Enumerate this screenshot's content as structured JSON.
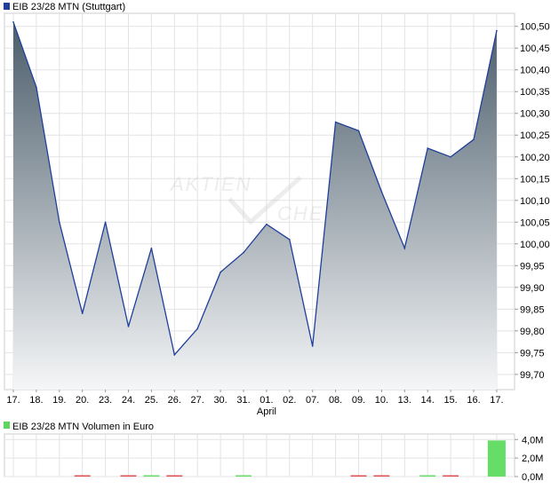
{
  "chart_data": [
    {
      "type": "area",
      "legend": "EIB 23/28 MTN (Stuttgart)",
      "series_color": "#1f3f9a",
      "fill_top": "#4b5d6b",
      "fill_bottom": "#f5f6f7",
      "watermark": [
        "AKTIEN",
        "CHECK"
      ],
      "categories": [
        "17.",
        "18.",
        "19.",
        "20.",
        "23.",
        "24.",
        "25.",
        "26.",
        "27.",
        "30.",
        "31.",
        "01.",
        "02.",
        "07.",
        "08.",
        "09.",
        "10.",
        "13.",
        "14.",
        "15.",
        "16.",
        "17."
      ],
      "month_label": "April",
      "month_label_index": 11,
      "values": [
        100.51,
        100.36,
        100.05,
        99.84,
        100.05,
        99.81,
        99.99,
        99.745,
        99.805,
        99.935,
        99.98,
        100.045,
        100.01,
        99.765,
        100.28,
        100.26,
        100.12,
        99.99,
        100.22,
        100.2,
        100.24,
        100.49
      ],
      "y_ticks": [
        "100,50",
        "100,45",
        "100,40",
        "100,35",
        "100,30",
        "100,25",
        "100,20",
        "100,15",
        "100,10",
        "100,05",
        "100,00",
        "99,95",
        "99,90",
        "99,85",
        "99,80",
        "99,75",
        "99,70"
      ],
      "ylim": [
        99.665,
        100.53
      ],
      "grid": true
    },
    {
      "type": "bar",
      "legend": "EIB 23/28 MTN Volumen in Euro",
      "legend_color": "#5cd65c",
      "up_color": "#66dd66",
      "down_color": "#e05050",
      "y_ticks": [
        "4,0M",
        "2,0M",
        "0,0M"
      ],
      "ylim": [
        0,
        4.6
      ],
      "values": [
        0,
        0,
        0,
        0.05,
        0,
        0.05,
        0.05,
        0.08,
        0,
        0,
        0.05,
        0,
        0,
        0,
        0,
        0.05,
        0.05,
        0,
        0.05,
        0.05,
        0,
        3.9
      ],
      "direction": [
        "",
        "",
        "",
        "down",
        "",
        "down",
        "up",
        "down",
        "",
        "",
        "up",
        "",
        "",
        "",
        "",
        "down",
        "down",
        "",
        "up",
        "down",
        "",
        "up"
      ]
    }
  ]
}
